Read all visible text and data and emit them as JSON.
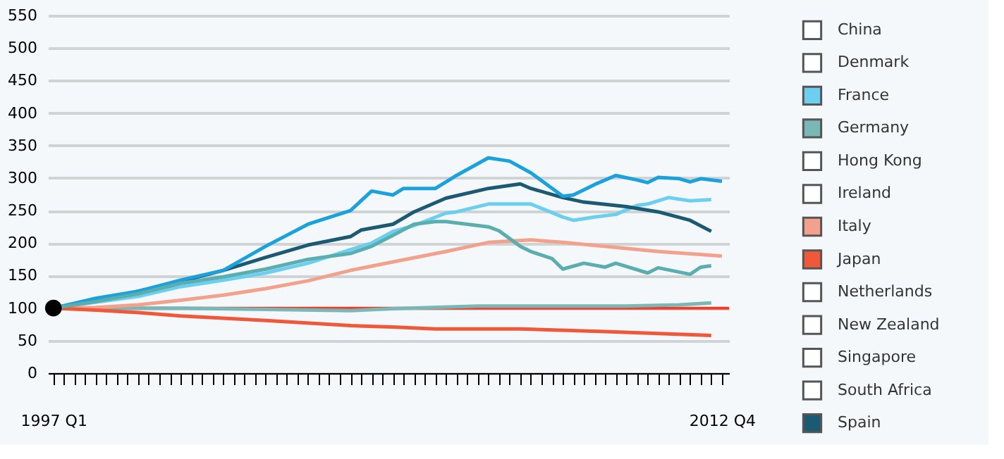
{
  "chart_data": {
    "type": "line",
    "xlim": [
      "1996-11-15",
      "2012-12-01"
    ],
    "xticks": [
      {
        "value": "1997-01",
        "label": "1997 Q1"
      },
      {
        "value": "1997-04",
        "label": null
      },
      {
        "value": "1997-07",
        "label": null
      },
      {
        "value": "1997-10",
        "label": null
      },
      {
        "value": "1998-01",
        "label": null
      },
      {
        "value": "1998-04",
        "label": null
      },
      {
        "value": "1998-07",
        "label": null
      },
      {
        "value": "1998-10",
        "label": null
      },
      {
        "value": "1999-01",
        "label": null
      },
      {
        "value": "1999-04",
        "label": null
      },
      {
        "value": "1999-07",
        "label": null
      },
      {
        "value": "1999-10",
        "label": null
      },
      {
        "value": "2000-01",
        "label": null
      },
      {
        "value": "2000-04",
        "label": null
      },
      {
        "value": "2000-07",
        "label": null
      },
      {
        "value": "2000-10",
        "label": null
      },
      {
        "value": "2001-01",
        "label": null
      },
      {
        "value": "2001-04",
        "label": null
      },
      {
        "value": "2001-07",
        "label": null
      },
      {
        "value": "2001-10",
        "label": null
      },
      {
        "value": "2002-01",
        "label": null
      },
      {
        "value": "2002-04",
        "label": null
      },
      {
        "value": "2002-07",
        "label": null
      },
      {
        "value": "2002-10",
        "label": null
      },
      {
        "value": "2003-01",
        "label": null
      },
      {
        "value": "2003-04",
        "label": null
      },
      {
        "value": "2003-07",
        "label": null
      },
      {
        "value": "2003-10",
        "label": null
      },
      {
        "value": "2004-01",
        "label": null
      },
      {
        "value": "2004-04",
        "label": null
      },
      {
        "value": "2004-07",
        "label": null
      },
      {
        "value": "2004-10",
        "label": null
      },
      {
        "value": "2005-01",
        "label": null
      },
      {
        "value": "2005-04",
        "label": null
      },
      {
        "value": "2005-07",
        "label": null
      },
      {
        "value": "2005-10",
        "label": null
      },
      {
        "value": "2006-01",
        "label": null
      },
      {
        "value": "2006-04",
        "label": null
      },
      {
        "value": "2006-07",
        "label": null
      },
      {
        "value": "2006-10",
        "label": null
      },
      {
        "value": "2007-01",
        "label": null
      },
      {
        "value": "2007-04",
        "label": null
      },
      {
        "value": "2007-07",
        "label": null
      },
      {
        "value": "2007-10",
        "label": null
      },
      {
        "value": "2008-01",
        "label": null
      },
      {
        "value": "2008-04",
        "label": null
      },
      {
        "value": "2008-07",
        "label": null
      },
      {
        "value": "2008-10",
        "label": null
      },
      {
        "value": "2009-01",
        "label": null
      },
      {
        "value": "2009-04",
        "label": null
      },
      {
        "value": "2009-07",
        "label": null
      },
      {
        "value": "2009-10",
        "label": null
      },
      {
        "value": "2010-01",
        "label": null
      },
      {
        "value": "2010-04",
        "label": null
      },
      {
        "value": "2010-07",
        "label": null
      },
      {
        "value": "2010-10",
        "label": null
      },
      {
        "value": "2011-01",
        "label": null
      },
      {
        "value": "2011-04",
        "label": null
      },
      {
        "value": "2011-07",
        "label": null
      },
      {
        "value": "2011-10",
        "label": null
      },
      {
        "value": "2012-01",
        "label": null
      },
      {
        "value": "2012-04",
        "label": null
      },
      {
        "value": "2012-07",
        "label": null
      },
      {
        "value": "2012-10",
        "label": "2012 Q4"
      }
    ],
    "ylim": [
      0,
      550
    ],
    "yticks": [
      0,
      50,
      100,
      150,
      200,
      250,
      300,
      350,
      400,
      450,
      500,
      550
    ],
    "grid": "y",
    "legend": "right",
    "ref_lines": [
      {
        "axis": "y",
        "value": 100,
        "color": "#f03c28"
      }
    ],
    "series": [
      {
        "name": "China",
        "color": "#ffffff"
      },
      {
        "name": "Denmark",
        "color": "#ffffff"
      },
      {
        "name": "France",
        "color": "#6dcff0",
        "x": [
          "1997-01",
          "1998-01",
          "1999-01",
          "2000-01",
          "2001-01",
          "2002-01",
          "2003-01",
          "2004-01",
          "2004-07",
          "2005-01",
          "2005-07",
          "2006-04",
          "2006-07",
          "2007-04",
          "2008-04",
          "2009-01",
          "2009-04",
          "2009-10",
          "2010-04",
          "2010-10",
          "2011-01",
          "2011-07",
          "2012-01",
          "2012-07"
        ],
        "values": [
          100,
          109,
          118,
          133,
          143,
          154,
          169,
          190,
          200,
          218,
          227,
          246,
          248,
          260,
          260,
          240,
          235,
          240,
          244,
          258,
          260,
          270,
          265,
          267
        ]
      },
      {
        "name": "Germany",
        "color": "#7ab7b7",
        "x": [
          "1997-01",
          "1999-01",
          "2000-01",
          "2002-01",
          "2004-01",
          "2005-01",
          "2007-01",
          "2009-01",
          "2010-07",
          "2011-10",
          "2012-07"
        ],
        "values": [
          100,
          100,
          100,
          98,
          96,
          99,
          103,
          103,
          103,
          105,
          108
        ]
      },
      {
        "name": "Hong Kong",
        "color": "#ffffff"
      },
      {
        "name": "Ireland",
        "color": "#ffffff"
      },
      {
        "name": "Italy",
        "color": "#f2a28c",
        "x": [
          "1997-01",
          "1998-01",
          "1999-01",
          "2000-01",
          "2001-01",
          "2002-01",
          "2003-01",
          "2004-01",
          "2005-01",
          "2006-04",
          "2007-04",
          "2008-04",
          "2009-01",
          "2010-01",
          "2011-04",
          "2012-10"
        ],
        "values": [
          100,
          101,
          105,
          112,
          120,
          130,
          142,
          158,
          171,
          187,
          201,
          205,
          201,
          195,
          187,
          180
        ]
      },
      {
        "name": "Japan",
        "color": "#f0583a",
        "x": [
          "1997-01",
          "1998-01",
          "1999-01",
          "2000-01",
          "2002-01",
          "2004-01",
          "2005-01",
          "2006-01",
          "2008-01",
          "2010-01",
          "2012-07"
        ],
        "values": [
          100,
          97,
          93,
          88,
          81,
          73,
          71,
          68,
          68,
          64,
          58
        ]
      },
      {
        "name": "Netherlands",
        "color": "#ffffff"
      },
      {
        "name": "New Zealand",
        "color": "#ffffff"
      },
      {
        "name": "Singapore",
        "color": "#ffffff"
      },
      {
        "name": "South Africa",
        "color": "#ffffff"
      },
      {
        "name": "Spain",
        "color": "#1b5a72",
        "x": [
          "1997-01",
          "1998-01",
          "1999-01",
          "2000-01",
          "2001-01",
          "2002-01",
          "2003-01",
          "2004-01",
          "2004-04",
          "2005-01",
          "2005-07",
          "2006-04",
          "2007-04",
          "2008-01",
          "2008-04",
          "2009-01",
          "2009-07",
          "2010-07",
          "2011-04",
          "2012-01",
          "2012-07"
        ],
        "values": [
          100,
          111,
          126,
          141,
          158,
          178,
          197,
          210,
          220,
          229,
          248,
          269,
          284,
          291,
          284,
          270,
          263,
          256,
          248,
          235,
          218
        ]
      },
      {
        "color": "#1ba1db",
        "x": [
          "1997-01",
          "1998-01",
          "1999-01",
          "2000-01",
          "2001-01",
          "2002-01",
          "2003-01",
          "2004-01",
          "2004-07",
          "2005-01",
          "2005-04",
          "2006-01",
          "2006-07",
          "2007-04",
          "2007-10",
          "2008-04",
          "2009-01",
          "2009-04",
          "2009-10",
          "2010-04",
          "2010-10",
          "2011-01",
          "2011-04",
          "2011-10",
          "2012-01",
          "2012-04",
          "2012-10"
        ],
        "values": [
          100,
          115,
          126,
          143,
          158,
          195,
          229,
          250,
          280,
          274,
          284,
          284,
          304,
          331,
          326,
          308,
          272,
          274,
          290,
          304,
          297,
          293,
          301,
          299,
          294,
          299,
          295
        ]
      },
      {
        "color": "#5aaeb0",
        "x": [
          "1997-01",
          "1998-01",
          "1999-01",
          "2000-01",
          "2001-01",
          "2002-01",
          "2003-01",
          "2004-01",
          "2004-07",
          "2005-01",
          "2005-07",
          "2006-01",
          "2006-04",
          "2007-04",
          "2007-07",
          "2008-01",
          "2008-04",
          "2008-10",
          "2009-01",
          "2009-07",
          "2010-01",
          "2010-04",
          "2011-01",
          "2011-04",
          "2012-01",
          "2012-04",
          "2012-07"
        ],
        "values": [
          100,
          110,
          122,
          138,
          148,
          160,
          175,
          184,
          195,
          212,
          229,
          233,
          233,
          225,
          219,
          195,
          187,
          176,
          160,
          169,
          163,
          169,
          154,
          162,
          152,
          163,
          165
        ]
      },
      {
        "type": "scatter",
        "color": "#000000",
        "x": [
          "1997-01"
        ],
        "values": [
          100
        ]
      }
    ]
  }
}
